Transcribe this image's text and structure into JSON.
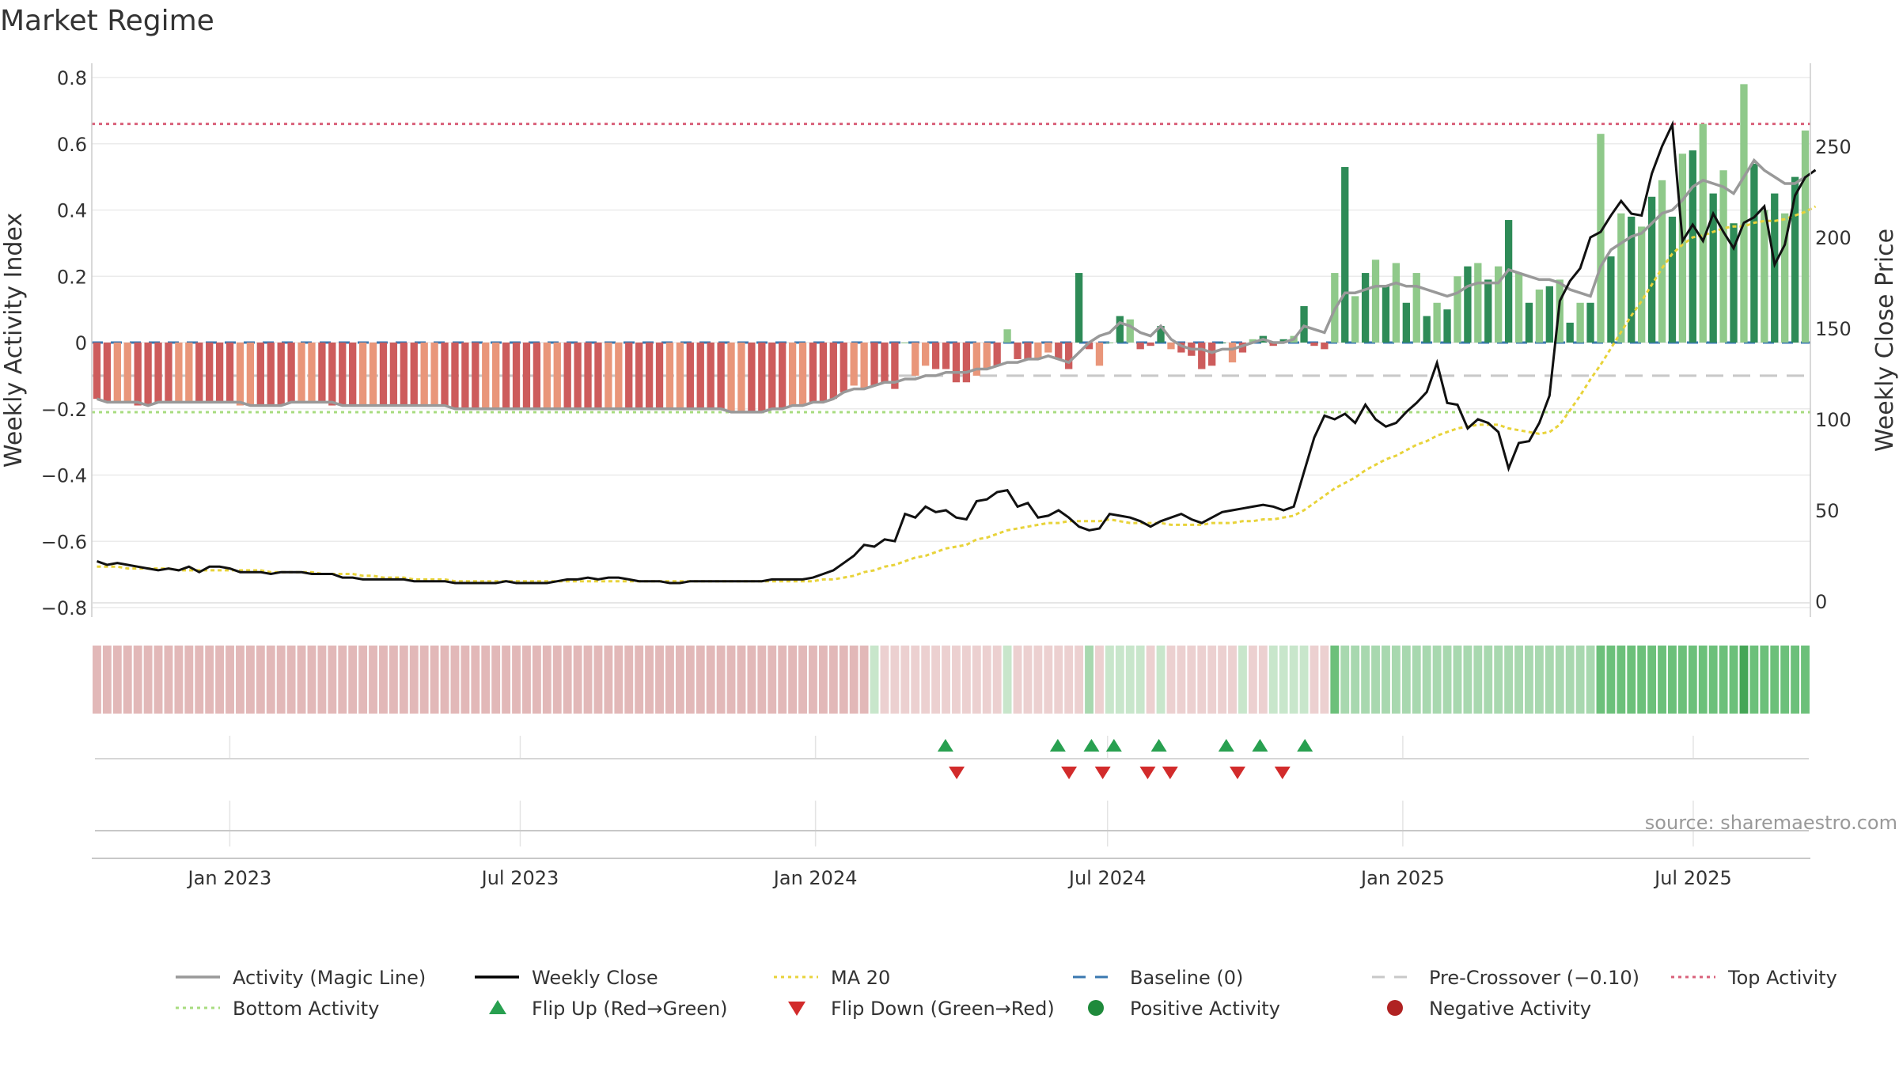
{
  "chart_data": {
    "type": "bar",
    "title": "Market Regime",
    "source": "source: sharemaestro.com",
    "ylabel_left": "Weekly Activity Index",
    "ylabel_right": "Weekly Close Price",
    "ylim_left": [
      -0.8,
      0.8
    ],
    "yticks_left": [
      "0.8",
      "0.6",
      "0.4",
      "0.2",
      "0",
      "−0.2",
      "−0.4",
      "−0.6",
      "−0.8"
    ],
    "ylim_right": [
      0,
      260
    ],
    "yticks_right": [
      "250",
      "200",
      "150",
      "100",
      "50",
      "0"
    ],
    "x_start": "2022-10-07",
    "x_end": "2025-09-12",
    "xticks": [
      "Jan 2023",
      "Jul 2023",
      "Jan 2024",
      "Jul 2024",
      "Jan 2025",
      "Jul 2025"
    ],
    "levels": {
      "top_activity": 0.66,
      "bottom_activity": -0.21,
      "pre_crossover": -0.1,
      "baseline": 0.0
    },
    "activity_bars": [
      -0.17,
      -0.18,
      -0.18,
      -0.18,
      -0.19,
      -0.19,
      -0.18,
      -0.18,
      -0.18,
      -0.18,
      -0.18,
      -0.18,
      -0.18,
      -0.18,
      -0.19,
      -0.19,
      -0.19,
      -0.19,
      -0.19,
      -0.18,
      -0.18,
      -0.18,
      -0.18,
      -0.19,
      -0.19,
      -0.19,
      -0.19,
      -0.19,
      -0.19,
      -0.19,
      -0.19,
      -0.19,
      -0.19,
      -0.19,
      -0.19,
      -0.2,
      -0.2,
      -0.2,
      -0.2,
      -0.2,
      -0.2,
      -0.2,
      -0.2,
      -0.2,
      -0.2,
      -0.2,
      -0.2,
      -0.2,
      -0.2,
      -0.2,
      -0.2,
      -0.2,
      -0.2,
      -0.2,
      -0.2,
      -0.2,
      -0.2,
      -0.2,
      -0.2,
      -0.2,
      -0.2,
      -0.2,
      -0.21,
      -0.21,
      -0.21,
      -0.21,
      -0.2,
      -0.2,
      -0.19,
      -0.19,
      -0.18,
      -0.18,
      -0.17,
      -0.15,
      -0.13,
      -0.14,
      -0.13,
      -0.12,
      -0.14,
      0.0,
      -0.1,
      -0.07,
      -0.08,
      -0.08,
      -0.12,
      -0.12,
      -0.1,
      -0.08,
      -0.07,
      0.04,
      -0.05,
      -0.05,
      -0.05,
      -0.03,
      -0.05,
      -0.08,
      0.21,
      -0.02,
      -0.07,
      0.0,
      0.08,
      0.07,
      -0.02,
      -0.01,
      0.05,
      -0.02,
      -0.03,
      -0.04,
      -0.08,
      -0.07,
      0.0,
      -0.06,
      -0.03,
      0.01,
      0.02,
      -0.01,
      0.01,
      0.02,
      0.11,
      -0.01,
      -0.02,
      0.21,
      0.53,
      0.14,
      0.21,
      0.25,
      0.17,
      0.24,
      0.12,
      0.21,
      0.08,
      0.12,
      0.1,
      0.2,
      0.23,
      0.24,
      0.19,
      0.23,
      0.37,
      0.21,
      0.12,
      0.16,
      0.17,
      0.19,
      0.06,
      0.12,
      0.12,
      0.63,
      0.26,
      0.39,
      0.38,
      0.35,
      0.44,
      0.49,
      0.38,
      0.57,
      0.58,
      0.66,
      0.45,
      0.52,
      0.36,
      0.78,
      0.54,
      0.4,
      0.45,
      0.39,
      0.5,
      0.64
    ],
    "magic_line": [
      -0.17,
      -0.18,
      -0.18,
      -0.18,
      -0.18,
      -0.19,
      -0.18,
      -0.18,
      -0.18,
      -0.18,
      -0.18,
      -0.18,
      -0.18,
      -0.18,
      -0.18,
      -0.19,
      -0.19,
      -0.19,
      -0.19,
      -0.18,
      -0.18,
      -0.18,
      -0.18,
      -0.18,
      -0.19,
      -0.19,
      -0.19,
      -0.19,
      -0.19,
      -0.19,
      -0.19,
      -0.19,
      -0.19,
      -0.19,
      -0.19,
      -0.2,
      -0.2,
      -0.2,
      -0.2,
      -0.2,
      -0.2,
      -0.2,
      -0.2,
      -0.2,
      -0.2,
      -0.2,
      -0.2,
      -0.2,
      -0.2,
      -0.2,
      -0.2,
      -0.2,
      -0.2,
      -0.2,
      -0.2,
      -0.2,
      -0.2,
      -0.2,
      -0.2,
      -0.2,
      -0.2,
      -0.2,
      -0.21,
      -0.21,
      -0.21,
      -0.21,
      -0.2,
      -0.2,
      -0.19,
      -0.19,
      -0.18,
      -0.18,
      -0.17,
      -0.15,
      -0.14,
      -0.14,
      -0.13,
      -0.12,
      -0.12,
      -0.11,
      -0.11,
      -0.1,
      -0.1,
      -0.09,
      -0.09,
      -0.09,
      -0.08,
      -0.08,
      -0.07,
      -0.06,
      -0.06,
      -0.05,
      -0.05,
      -0.04,
      -0.05,
      -0.06,
      -0.03,
      0.0,
      0.02,
      0.03,
      0.06,
      0.05,
      0.03,
      0.02,
      0.05,
      0.01,
      -0.01,
      -0.02,
      -0.02,
      -0.03,
      -0.02,
      -0.02,
      -0.01,
      0.0,
      0.01,
      0.0,
      0.0,
      0.01,
      0.05,
      0.04,
      0.03,
      0.1,
      0.15,
      0.15,
      0.16,
      0.17,
      0.17,
      0.18,
      0.17,
      0.17,
      0.16,
      0.15,
      0.14,
      0.15,
      0.17,
      0.18,
      0.18,
      0.18,
      0.22,
      0.21,
      0.2,
      0.19,
      0.19,
      0.18,
      0.16,
      0.15,
      0.14,
      0.23,
      0.28,
      0.3,
      0.32,
      0.33,
      0.36,
      0.39,
      0.4,
      0.43,
      0.47,
      0.49,
      0.48,
      0.47,
      0.45,
      0.5,
      0.55,
      0.52,
      0.5,
      0.48,
      0.48,
      0.5
    ],
    "weekly_close": [
      22,
      20,
      21,
      20,
      19,
      18,
      17,
      18,
      17,
      19,
      16,
      19,
      19,
      18,
      16,
      16,
      16,
      15,
      16,
      16,
      16,
      15,
      15,
      15,
      13,
      13,
      12,
      12,
      12,
      12,
      12,
      11,
      11,
      11,
      11,
      10,
      10,
      10,
      10,
      10,
      11,
      10,
      10,
      10,
      10,
      11,
      12,
      12,
      13,
      12,
      13,
      13,
      12,
      11,
      11,
      11,
      10,
      10,
      11,
      11,
      11,
      11,
      11,
      11,
      11,
      11,
      12,
      12,
      12,
      12,
      13,
      15,
      17,
      21,
      25,
      31,
      30,
      34,
      33,
      48,
      46,
      52,
      49,
      50,
      46,
      45,
      55,
      56,
      60,
      61,
      52,
      54,
      46,
      47,
      50,
      46,
      41,
      39,
      40,
      48,
      47,
      46,
      44,
      41,
      44,
      46,
      48,
      45,
      43,
      46,
      49,
      50,
      51,
      52,
      53,
      52,
      50,
      52,
      71,
      90,
      102,
      100,
      103,
      98,
      108,
      100,
      96,
      98,
      104,
      109,
      115,
      131,
      109,
      108,
      95,
      100,
      98,
      93,
      73,
      87,
      88,
      98,
      113,
      165,
      176,
      183,
      200,
      203,
      212,
      220,
      213,
      212,
      235,
      250,
      262,
      198,
      207,
      198,
      213,
      203,
      194,
      208,
      211,
      217,
      185,
      196,
      223,
      233,
      237
    ],
    "ma20": [
      19,
      19,
      19,
      18,
      18,
      18,
      18,
      18,
      17,
      17,
      17,
      17,
      17,
      17,
      17,
      17,
      17,
      16,
      16,
      16,
      16,
      16,
      15,
      15,
      15,
      15,
      14,
      14,
      13,
      13,
      13,
      12,
      12,
      12,
      12,
      11,
      11,
      11,
      11,
      11,
      11,
      11,
      11,
      11,
      11,
      11,
      11,
      11,
      11,
      11,
      11,
      11,
      11,
      11,
      11,
      11,
      11,
      11,
      11,
      11,
      11,
      11,
      11,
      11,
      11,
      11,
      11,
      11,
      11,
      11,
      11,
      12,
      12,
      13,
      14,
      16,
      17,
      19,
      20,
      22,
      24,
      25,
      27,
      29,
      30,
      31,
      34,
      35,
      37,
      39,
      40,
      41,
      42,
      43,
      43,
      44,
      44,
      44,
      44,
      45,
      44,
      43,
      43,
      43,
      43,
      42,
      42,
      42,
      42,
      43,
      43,
      43,
      44,
      44,
      45,
      45,
      46,
      47,
      50,
      54,
      58,
      62,
      65,
      68,
      72,
      75,
      78,
      80,
      83,
      86,
      88,
      91,
      93,
      95,
      96,
      97,
      97,
      97,
      95,
      94,
      93,
      92,
      93,
      97,
      105,
      113,
      122,
      130,
      139,
      148,
      157,
      165,
      174,
      183,
      191,
      196,
      200,
      201,
      203,
      205,
      206,
      206,
      208,
      209,
      209,
      210,
      212,
      214,
      217
    ],
    "regime_shades": [
      "#e2b8b8",
      "#e2b8b8",
      "#e2b8b8",
      "#e2b8b8",
      "#e2b8b8",
      "#e2b8b8",
      "#e2b8b8",
      "#e2b8b8",
      "#e2b8b8",
      "#e2b8b8",
      "#e2b8b8",
      "#e2b8b8",
      "#e2b8b8",
      "#e2b8b8",
      "#e2b8b8",
      "#e2b8b8",
      "#e2b8b8",
      "#e2b8b8",
      "#e2b8b8",
      "#e2b8b8",
      "#e2b8b8",
      "#e2b8b8",
      "#e2b8b8",
      "#e2b8b8",
      "#e2b8b8",
      "#e2b8b8",
      "#e2b8b8",
      "#e2b8b8",
      "#e2b8b8",
      "#e2b8b8",
      "#e2b8b8",
      "#e2b8b8",
      "#e2b8b8",
      "#e2b8b8",
      "#e2b8b8",
      "#e2b8b8",
      "#e2b8b8",
      "#e2b8b8",
      "#e2b8b8",
      "#e2b8b8",
      "#e2b8b8",
      "#e2b8b8",
      "#e2b8b8",
      "#e2b8b8",
      "#e2b8b8",
      "#e2b8b8",
      "#e2b8b8",
      "#e2b8b8",
      "#e2b8b8",
      "#e2b8b8",
      "#e2b8b8",
      "#e2b8b8",
      "#e2b8b8",
      "#e2b8b8",
      "#e2b8b8",
      "#e2b8b8",
      "#e2b8b8",
      "#e2b8b8",
      "#e2b8b8",
      "#e2b8b8",
      "#e2b8b8",
      "#e2b8b8",
      "#e2b8b8",
      "#e2b8b8",
      "#e2b8b8",
      "#e2b8b8",
      "#e2b8b8",
      "#e2b8b8",
      "#e2b8b8",
      "#e2b8b8",
      "#e2b8b8",
      "#e2b8b8",
      "#e2b8b8",
      "#e2b8b8",
      "#e2b8b8",
      "#e2b8b8",
      "#c8e6cb",
      "#ecd0d0",
      "#ecd0d0",
      "#ecd0d0",
      "#ecd0d0",
      "#ecd0d0",
      "#ecd0d0",
      "#ecd0d0",
      "#ecd0d0",
      "#ecd0d0",
      "#ecd0d0",
      "#ecd0d0",
      "#ecd0d0",
      "#c8e6cb",
      "#ecd0d0",
      "#ecd0d0",
      "#ecd0d0",
      "#ecd0d0",
      "#ecd0d0",
      "#ecd0d0",
      "#ecd0d0",
      "#a8d8af",
      "#ecd0d0",
      "#c8e6cb",
      "#c8e6cb",
      "#c8e6cb",
      "#c8e6cb",
      "#ecd0d0",
      "#c8e6cb",
      "#ecd0d0",
      "#ecd0d0",
      "#ecd0d0",
      "#ecd0d0",
      "#ecd0d0",
      "#ecd0d0",
      "#ecd0d0",
      "#c8e6cb",
      "#ecd0d0",
      "#ecd0d0",
      "#c8e6cb",
      "#c8e6cb",
      "#c8e6cb",
      "#c8e6cb",
      "#ecd0d0",
      "#ecd0d0",
      "#6cc07a",
      "#a8d8af",
      "#a8d8af",
      "#a8d8af",
      "#a8d8af",
      "#a8d8af",
      "#a8d8af",
      "#a8d8af",
      "#a8d8af",
      "#a8d8af",
      "#a8d8af",
      "#a8d8af",
      "#a8d8af",
      "#a8d8af",
      "#a8d8af",
      "#a8d8af",
      "#a8d8af",
      "#a8d8af",
      "#a8d8af",
      "#a8d8af",
      "#a8d8af",
      "#a8d8af",
      "#a8d8af",
      "#a8d8af",
      "#a8d8af",
      "#a8d8af",
      "#6cc07a",
      "#6cc07a",
      "#6cc07a",
      "#6cc07a",
      "#6cc07a",
      "#6cc07a",
      "#6cc07a",
      "#6cc07a",
      "#6cc07a",
      "#6cc07a",
      "#6cc07a",
      "#6cc07a",
      "#6cc07a",
      "#6cc07a",
      "#45a656",
      "#6cc07a",
      "#6cc07a",
      "#6cc07a",
      "#6cc07a",
      "#6cc07a",
      "#6cc07a"
    ],
    "flip_up_dates": [
      "2024-03-22",
      "2024-05-31",
      "2024-06-21",
      "2024-07-05",
      "2024-08-02",
      "2024-09-13",
      "2024-10-04",
      "2024-11-01"
    ],
    "flip_down_dates": [
      "2024-03-29",
      "2024-06-07",
      "2024-06-28",
      "2024-07-26",
      "2024-08-09",
      "2024-09-20",
      "2024-10-18"
    ],
    "legend": [
      {
        "label": "Activity (Magic Line)",
        "kind": "line",
        "color": "#999999"
      },
      {
        "label": "Weekly Close",
        "kind": "line",
        "color": "#000000"
      },
      {
        "label": "MA 20",
        "kind": "dotted",
        "color": "#e8d33a"
      },
      {
        "label": "Baseline (0)",
        "kind": "dashed",
        "color": "#3a78b0"
      },
      {
        "label": "Pre-Crossover (−0.10)",
        "kind": "dashed",
        "color": "#c8c8c8"
      },
      {
        "label": "Top Activity",
        "kind": "dotted",
        "color": "#d9607a"
      },
      {
        "label": "Bottom Activity",
        "kind": "dotted",
        "color": "#a8dc80"
      },
      {
        "label": "Flip Up (Red→Green)",
        "kind": "triangle-up",
        "color": "#28a050"
      },
      {
        "label": "Flip Down (Green→Red)",
        "kind": "triangle-down",
        "color": "#d22b2b"
      },
      {
        "label": "Positive Activity",
        "kind": "circle",
        "color": "#1f8a3b"
      },
      {
        "label": "Negative Activity",
        "kind": "circle",
        "color": "#b02222"
      }
    ],
    "colors": {
      "bar_neg_dark": "#cd5c5c",
      "bar_neg_light": "#e9967a",
      "bar_pos_dark": "#2e8b57",
      "bar_pos_light": "#8fc98a",
      "magic_line": "#999999",
      "weekly_close": "#111111",
      "ma20": "#e8d33a",
      "top_activity": "#d9607a",
      "bottom_activity": "#a8dc80",
      "baseline": "#3a78b0",
      "pre_crossover": "#c8c8c8",
      "flip_up": "#28a050",
      "flip_down": "#d22b2b",
      "grid": "#ebebeb"
    }
  }
}
